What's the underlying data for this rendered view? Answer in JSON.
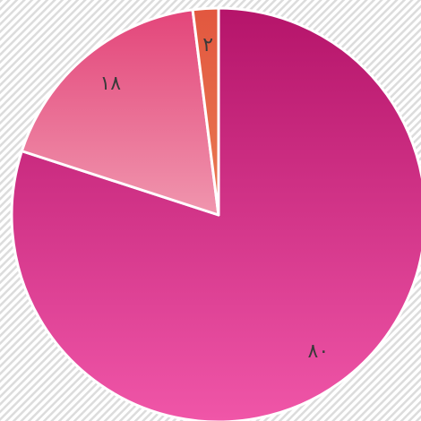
{
  "chart_data": {
    "type": "pie",
    "values": [
      80,
      18,
      2
    ],
    "value_labels": [
      "٨٠",
      "١٨",
      "٢"
    ],
    "colors": [
      [
        "#b5146a",
        "#f056a8"
      ],
      [
        "#e3457a",
        "#f096ae"
      ],
      [
        "#e2573f",
        "#e97a52"
      ]
    ]
  }
}
